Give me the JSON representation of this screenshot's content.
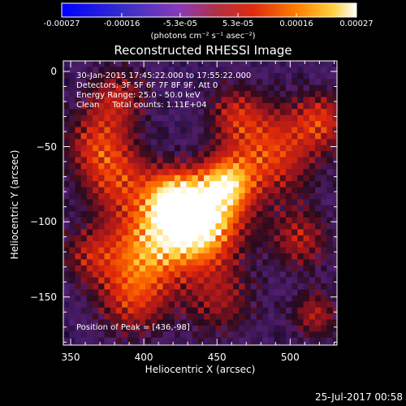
{
  "colorbar": {
    "tick_labels": [
      "-0.00027",
      "-0.00016",
      "-5.3e-05",
      "5.3e-05",
      "0.00016",
      "0.00027"
    ],
    "tick_values": [
      -0.00027,
      -0.00016,
      -5.3e-05,
      5.3e-05,
      0.00016,
      0.00027
    ],
    "range": [
      -0.00027,
      0.00027
    ],
    "units": "(photons cm⁻² s⁻¹ asec⁻²)"
  },
  "chart_data": {
    "type": "heatmap",
    "title": "Reconstructed RHESSI Image",
    "xlabel": "Heliocentric X (arcsec)",
    "ylabel": "Heliocentric Y (arcsec)",
    "xlim": [
      345,
      532
    ],
    "ylim": [
      -182,
      7
    ],
    "x_ticks": [
      350,
      400,
      450,
      500
    ],
    "y_ticks": [
      0,
      -50,
      -100,
      -150
    ],
    "peak": [
      436,
      -98
    ],
    "annotations": [
      "30-Jan-2015 17:45:22.000 to 17:55:22.000",
      "Detectors: 3F 5F 6F 7F 8F 9F, Att 0",
      "Energy Range: 25.0 - 50.0 keV",
      "Clean     Total counts: 1.11E+04"
    ],
    "peak_label": "Position of Peak = [436,-98]"
  },
  "timestamp": "25-Jul-2017 00:58"
}
